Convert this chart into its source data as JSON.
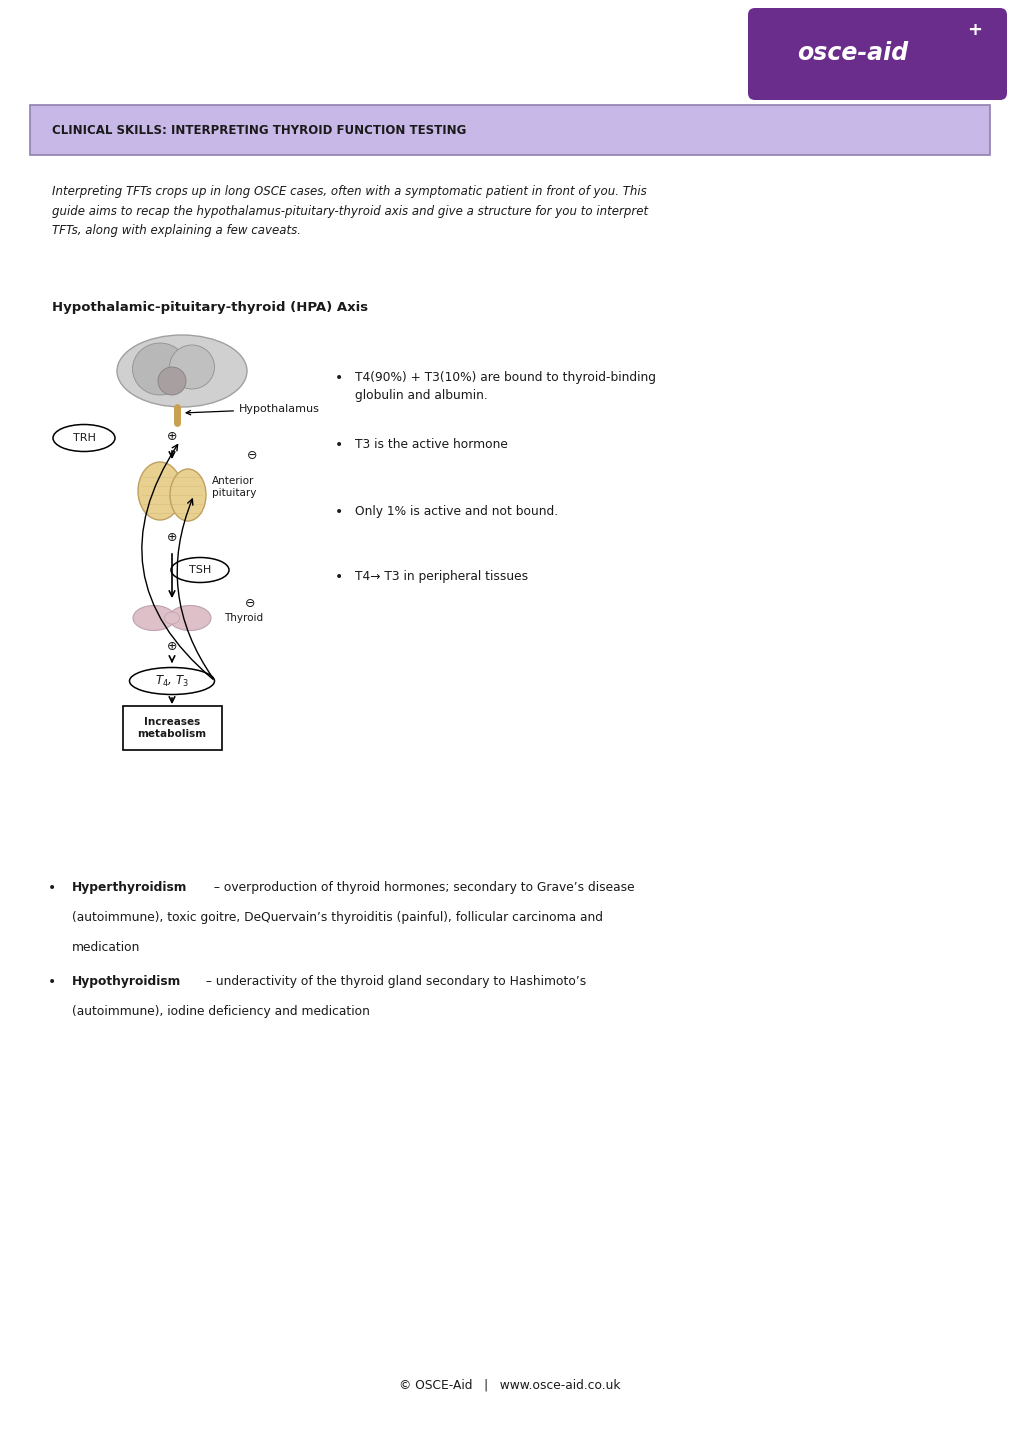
{
  "bg_color": "#ffffff",
  "logo_bg": "#6b2d8b",
  "logo_text": "osce-aid",
  "logo_plus": "+",
  "header_bg": "#c8b8e8",
  "header_border": "#9080b0",
  "header_text": "CLINICAL SKILLS: INTERPRETING THYROID FUNCTION TESTING",
  "intro_text": "Interpreting TFTs crops up in long OSCE cases, often with a symptomatic patient in front of you. This\nguide aims to recap the hypothalamus-pituitary-thyroid axis and give a structure for you to interpret\nTFTs, along with explaining a few caveats.",
  "section_title": "Hypothalamic-pituitary-thyroid (HPA) Axis",
  "bullet_points": [
    "T4(90%) + T3(10%) are bound to thyroid-binding\nglobulin and albumin.",
    "T3 is the active hormone",
    "Only 1% is active and not bound.",
    "T4→ T3 in peripheral tissues"
  ],
  "hyper_bold": "Hyperthyroidism",
  "hyper_rest": " – overproduction of thyroid hormones; secondary to Grave’s disease\n(autoimmune), toxic goitre, DeQuervain’s thyroiditis (painful), follicular carcinoma and\nmedication",
  "hypo_bold": "Hypothyroidism",
  "hypo_rest": " – underactivity of the thyroid gland secondary to Hashimoto’s\n(autoimmune), iodine deficiency and medication",
  "footer_text": "© OSCE-Aid   |   www.osce-aid.co.uk",
  "text_color": "#1a1a1a"
}
